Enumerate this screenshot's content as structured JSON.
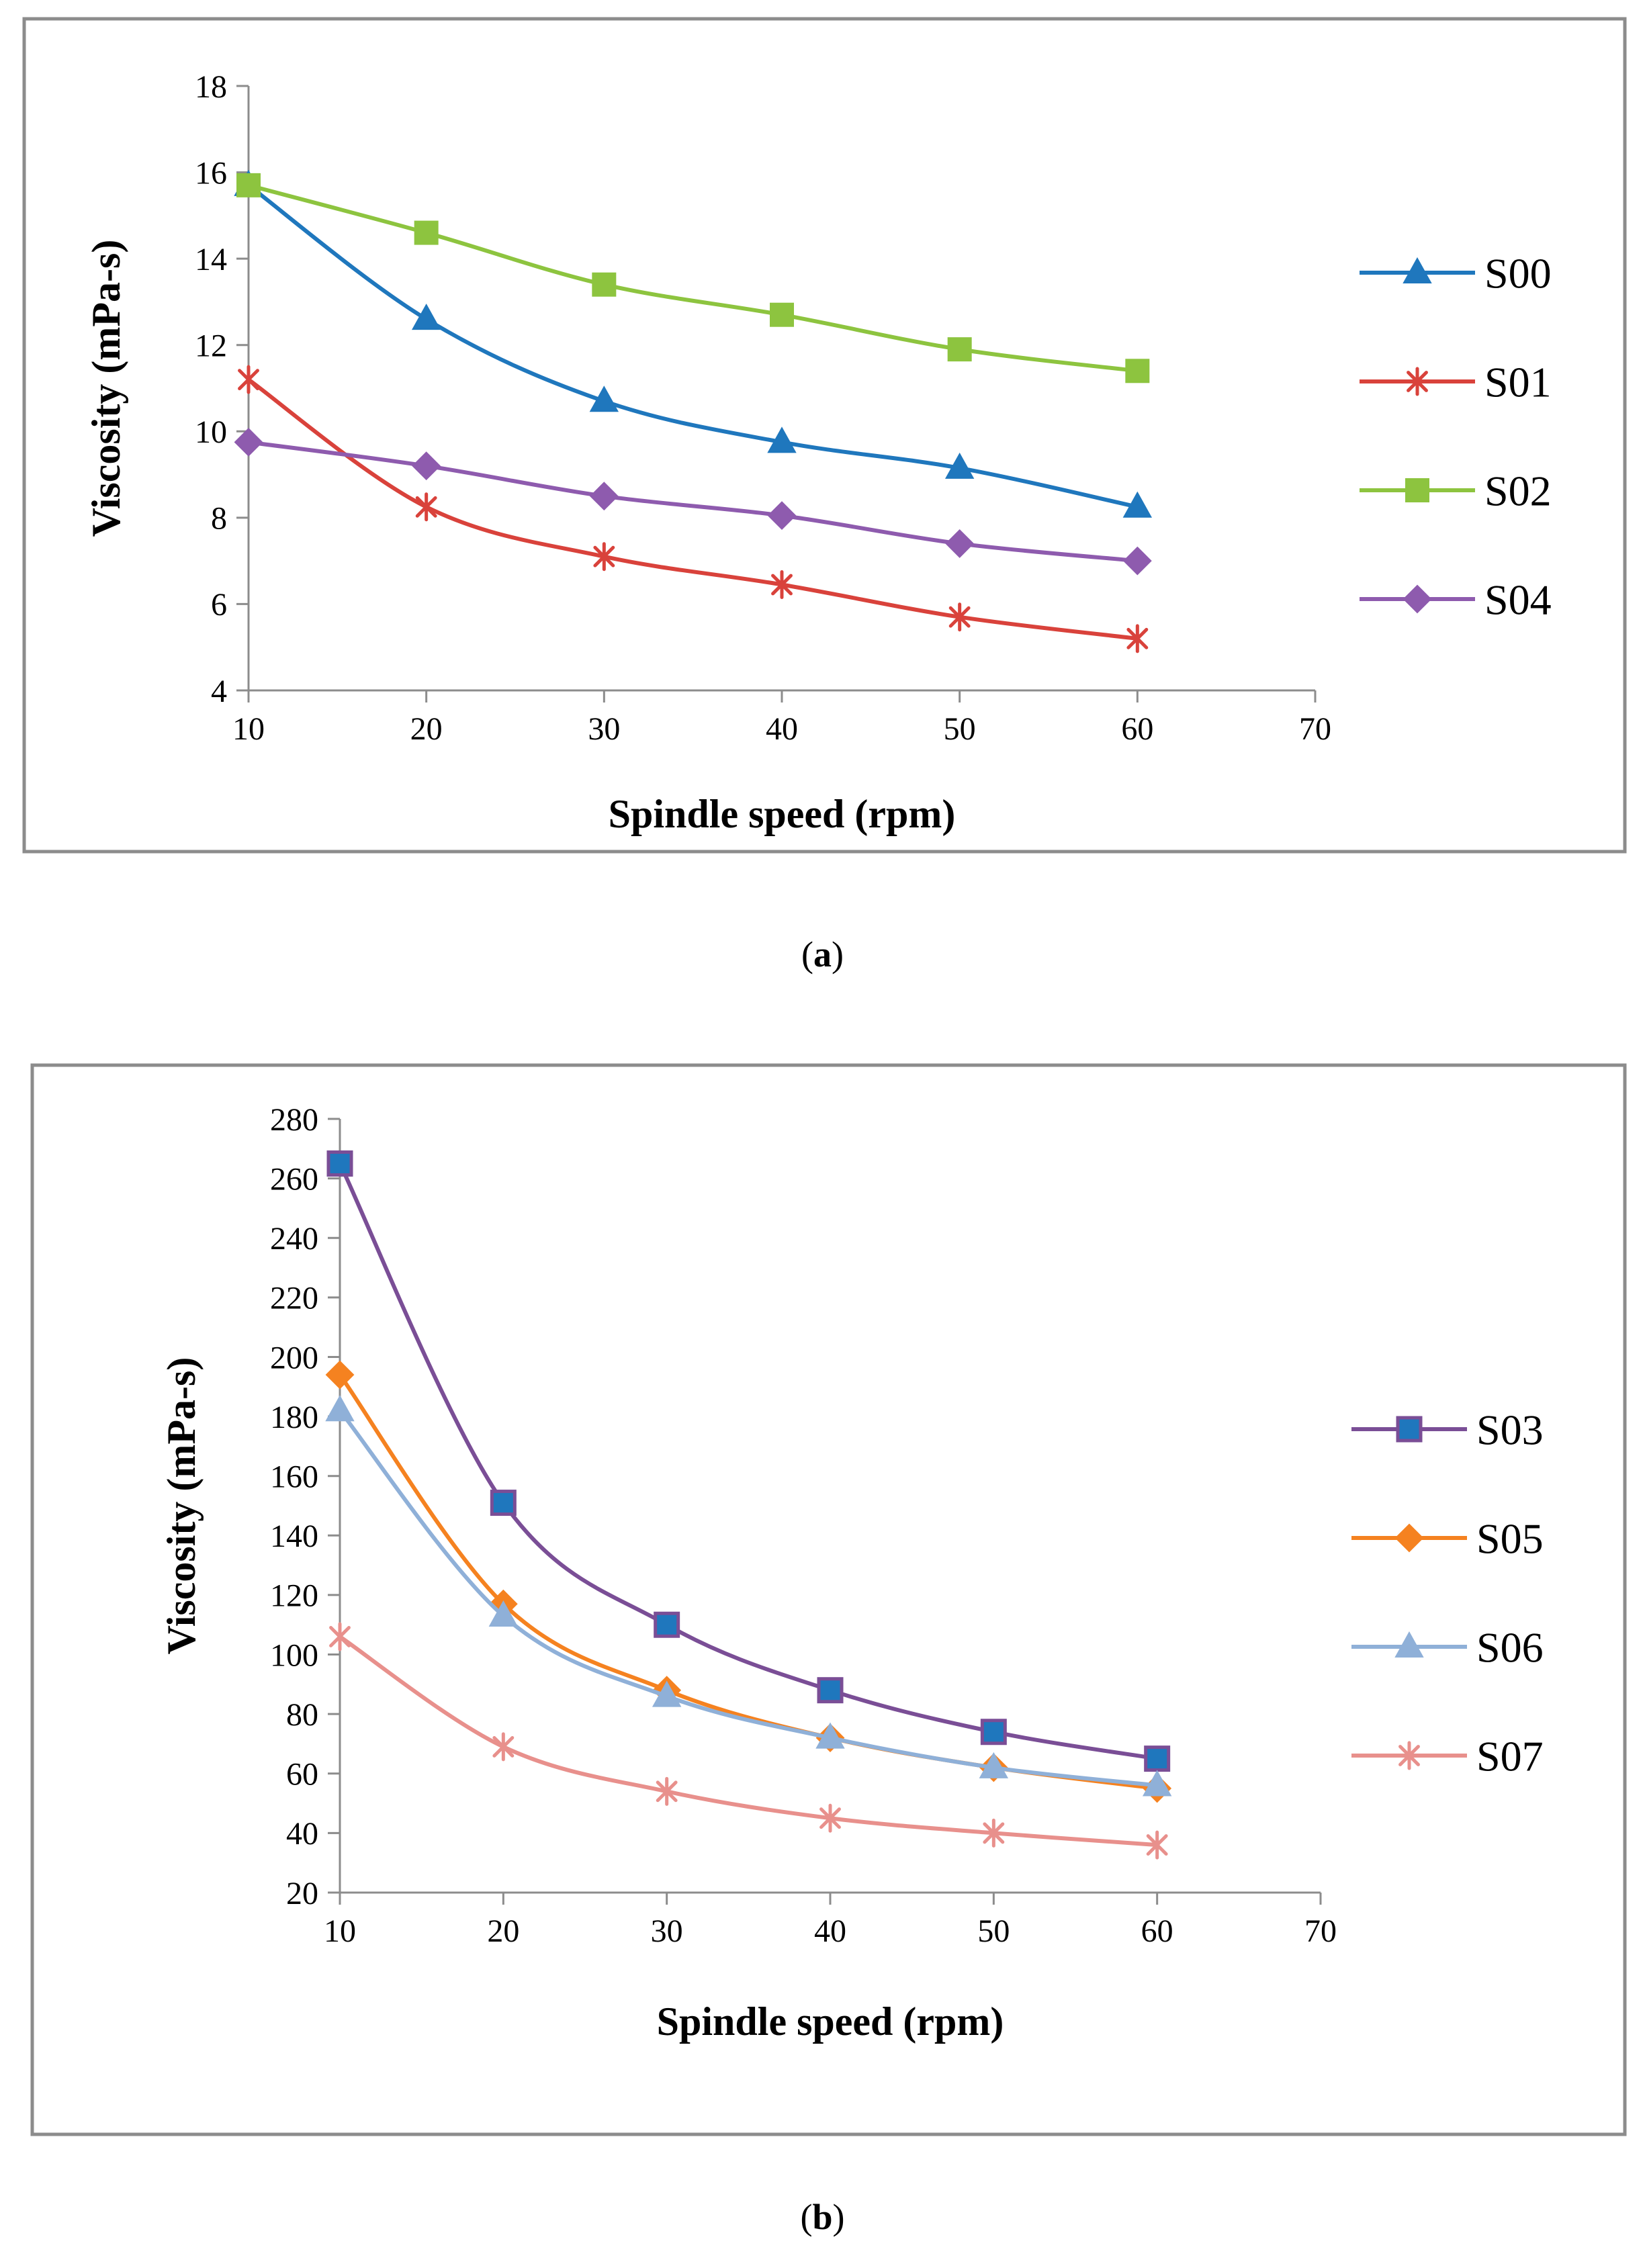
{
  "chart_data": [
    {
      "type": "line",
      "panel_label": "a",
      "xlabel": "Spindle speed (rpm)",
      "ylabel": "Viscosity (mPa-s)",
      "xlim": [
        10,
        70
      ],
      "ylim": [
        4,
        18
      ],
      "xticks": [
        10,
        20,
        30,
        40,
        50,
        60,
        70
      ],
      "yticks": [
        4,
        6,
        8,
        10,
        12,
        14,
        16,
        18
      ],
      "x": [
        10,
        20,
        30,
        40,
        50,
        60
      ],
      "legend_position": "right",
      "series": [
        {
          "name": "S00",
          "color": "#1F77BD",
          "marker": "triangle",
          "values": [
            15.7,
            12.6,
            10.7,
            9.75,
            9.15,
            8.25
          ]
        },
        {
          "name": "S01",
          "color": "#D9423B",
          "marker": "star",
          "values": [
            11.2,
            8.25,
            7.1,
            6.45,
            5.7,
            5.2
          ]
        },
        {
          "name": "S02",
          "color": "#8DC43F",
          "marker": "square",
          "values": [
            15.7,
            14.6,
            13.4,
            12.7,
            11.9,
            11.4
          ]
        },
        {
          "name": "S04",
          "color": "#8E5BAE",
          "marker": "diamond",
          "values": [
            9.75,
            9.2,
            8.5,
            8.05,
            7.4,
            7.0
          ]
        }
      ]
    },
    {
      "type": "line",
      "panel_label": "b",
      "xlabel": "Spindle speed (rpm)",
      "ylabel": "Viscosity (mPa-s)",
      "xlim": [
        10,
        70
      ],
      "ylim": [
        20,
        280
      ],
      "xticks": [
        10,
        20,
        30,
        40,
        50,
        60,
        70
      ],
      "yticks": [
        20,
        40,
        60,
        80,
        100,
        120,
        140,
        160,
        180,
        200,
        220,
        240,
        260,
        280
      ],
      "x": [
        10,
        20,
        30,
        40,
        50,
        60
      ],
      "legend_position": "right",
      "series": [
        {
          "name": "S03",
          "color": "#7A4E96",
          "fill": "#1F77BD",
          "marker": "square",
          "values": [
            265,
            151,
            110,
            88,
            74,
            65
          ]
        },
        {
          "name": "S05",
          "color": "#F58220",
          "marker": "diamond",
          "values": [
            194,
            117,
            88,
            72,
            62,
            55
          ]
        },
        {
          "name": "S06",
          "color": "#8FB0D8",
          "marker": "triangle",
          "values": [
            182,
            113,
            86,
            72,
            62,
            56
          ]
        },
        {
          "name": "S07",
          "color": "#E8908C",
          "marker": "star",
          "values": [
            106,
            69,
            54,
            45,
            40,
            36
          ]
        }
      ]
    }
  ]
}
